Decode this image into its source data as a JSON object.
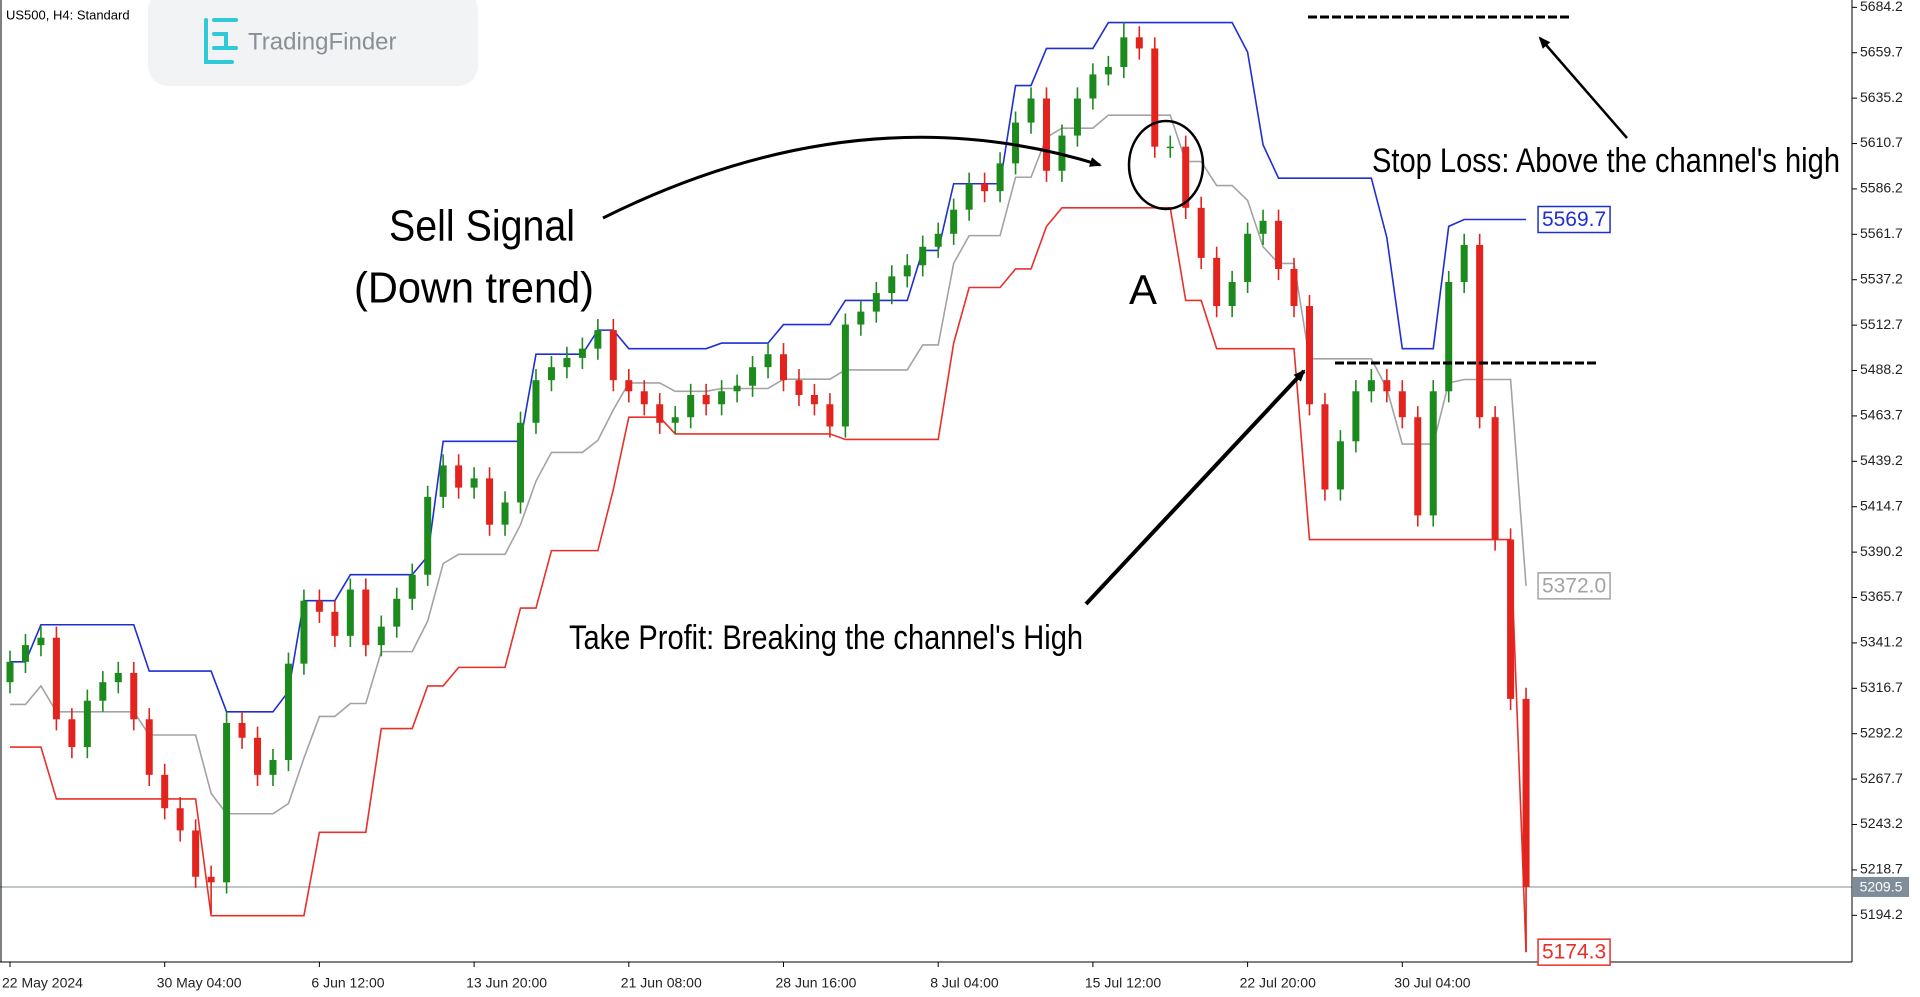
{
  "chart_data": {
    "type": "candlestick",
    "title": "US500, H4: Standard",
    "brand": "TradingFinder",
    "categories": [
      "22 May 2024",
      null,
      null,
      null,
      null,
      null,
      null,
      null,
      null,
      null,
      "30 May 04:00",
      null,
      null,
      null,
      null,
      null,
      null,
      null,
      null,
      null,
      "6 Jun 12:00",
      null,
      null,
      null,
      null,
      null,
      null,
      null,
      null,
      null,
      "13 Jun 20:00",
      null,
      null,
      null,
      null,
      null,
      null,
      null,
      null,
      null,
      "21 Jun 08:00",
      null,
      null,
      null,
      null,
      null,
      null,
      null,
      null,
      null,
      "28 Jun 16:00",
      null,
      null,
      null,
      null,
      null,
      null,
      null,
      null,
      null,
      "8 Jul 04:00",
      null,
      null,
      null,
      null,
      null,
      null,
      null,
      null,
      null,
      "15 Jul 12:00",
      null,
      null,
      null,
      null,
      null,
      null,
      null,
      null,
      null,
      "22 Jul 20:00",
      null,
      null,
      null,
      null,
      null,
      null,
      null,
      null,
      null,
      "30 Jul 04:00",
      null,
      null,
      null,
      null,
      null,
      null,
      null,
      null
    ],
    "open": [
      5320,
      5331,
      5340,
      5344,
      5300,
      5285,
      5310,
      5320,
      5325,
      5300,
      5270,
      5252,
      5240,
      5215,
      5212,
      5298,
      5290,
      5270,
      5278,
      5330,
      5364,
      5358,
      5345,
      5370,
      5340,
      5350,
      5365,
      5378,
      5420,
      5437,
      5425,
      5430,
      5405,
      5417,
      5460,
      5483,
      5490,
      5495,
      5500,
      5510,
      5483,
      5477,
      5470,
      5460,
      5463,
      5475,
      5470,
      5477,
      5480,
      5490,
      5497,
      5483,
      5475,
      5470,
      5458,
      5513,
      5520,
      5530,
      5539,
      5545,
      5555,
      5562,
      5575,
      5589,
      5585,
      5600,
      5622,
      5635,
      5596,
      5615,
      5635,
      5648,
      5652,
      5668,
      5662,
      5609,
      5609,
      5576,
      5549,
      5523,
      5536,
      5562,
      5569,
      5543,
      5523,
      5470,
      5424,
      5450,
      5477,
      5483,
      5477,
      5463,
      5410,
      5477,
      5536,
      5556,
      5463,
      5397,
      5311
    ],
    "high": [
      5337,
      5346,
      5350,
      5350,
      5306,
      5316,
      5326,
      5331,
      5331,
      5306,
      5276,
      5258,
      5246,
      5221,
      5304,
      5304,
      5296,
      5284,
      5336,
      5370,
      5370,
      5364,
      5376,
      5376,
      5356,
      5371,
      5384,
      5426,
      5443,
      5443,
      5436,
      5436,
      5423,
      5466,
      5489,
      5496,
      5501,
      5506,
      5516,
      5516,
      5489,
      5483,
      5476,
      5469,
      5481,
      5481,
      5483,
      5486,
      5496,
      5503,
      5503,
      5489,
      5481,
      5476,
      5519,
      5526,
      5536,
      5545,
      5551,
      5561,
      5568,
      5581,
      5595,
      5595,
      5606,
      5628,
      5641,
      5641,
      5621,
      5641,
      5654,
      5658,
      5676,
      5674,
      5668,
      5615,
      5615,
      5582,
      5555,
      5542,
      5568,
      5575,
      5575,
      5549,
      5529,
      5476,
      5456,
      5483,
      5489,
      5489,
      5483,
      5469,
      5483,
      5542,
      5562,
      5562,
      5469,
      5403,
      5317
    ],
    "low": [
      5314,
      5325,
      5334,
      5294,
      5279,
      5279,
      5304,
      5314,
      5294,
      5264,
      5246,
      5234,
      5209,
      5195,
      5206,
      5284,
      5264,
      5264,
      5272,
      5324,
      5352,
      5339,
      5339,
      5334,
      5334,
      5344,
      5359,
      5372,
      5414,
      5419,
      5419,
      5399,
      5399,
      5411,
      5454,
      5477,
      5484,
      5489,
      5494,
      5477,
      5471,
      5464,
      5454,
      5454,
      5457,
      5464,
      5464,
      5471,
      5474,
      5484,
      5477,
      5469,
      5464,
      5452,
      5452,
      5507,
      5514,
      5524,
      5533,
      5539,
      5549,
      5556,
      5569,
      5579,
      5579,
      5594,
      5616,
      5590,
      5590,
      5609,
      5629,
      5642,
      5646,
      5656,
      5603,
      5603,
      5570,
      5543,
      5517,
      5517,
      5530,
      5556,
      5537,
      5517,
      5464,
      5418,
      5418,
      5444,
      5471,
      5471,
      5457,
      5404,
      5404,
      5471,
      5530,
      5457,
      5391,
      5305,
      5174.3
    ],
    "close": [
      5331,
      5340,
      5344,
      5300,
      5285,
      5310,
      5320,
      5325,
      5300,
      5270,
      5252,
      5240,
      5215,
      5212,
      5298,
      5290,
      5270,
      5278,
      5330,
      5364,
      5358,
      5345,
      5370,
      5340,
      5350,
      5365,
      5378,
      5420,
      5437,
      5425,
      5430,
      5405,
      5417,
      5460,
      5483,
      5490,
      5495,
      5500,
      5510,
      5483,
      5477,
      5470,
      5460,
      5463,
      5475,
      5470,
      5477,
      5480,
      5490,
      5497,
      5483,
      5475,
      5470,
      5458,
      5513,
      5520,
      5530,
      5539,
      5545,
      5555,
      5562,
      5575,
      5589,
      5585,
      5600,
      5622,
      5635,
      5596,
      5615,
      5635,
      5648,
      5652,
      5668,
      5662,
      5609,
      5609,
      5576,
      5549,
      5523,
      5536,
      5562,
      5569,
      5543,
      5523,
      5470,
      5424,
      5450,
      5477,
      5483,
      5477,
      5463,
      5410,
      5477,
      5536,
      5556,
      5463,
      5397,
      5311,
      5209.5
    ],
    "up_color": "#1c8a1c",
    "down_color": "#e3231d",
    "current_price_color": "#7f8c99",
    "channels": [
      {
        "color": "#1f2fd0",
        "values": [
          5331,
          5331,
          5351,
          5351,
          5351,
          5351,
          5351,
          5351,
          5351,
          5326,
          5326,
          5326,
          5326,
          5326,
          5304,
          5304,
          5304,
          5304,
          5315,
          5364,
          5364,
          5364,
          5378,
          5378,
          5378,
          5378,
          5378,
          5388,
          5450,
          5450,
          5450,
          5450,
          5450,
          5450,
          5497,
          5497,
          5497,
          5497,
          5510,
          5510,
          5500,
          5500,
          5500,
          5500,
          5500,
          5500,
          5503,
          5503,
          5503,
          5503,
          5513,
          5513,
          5513,
          5513,
          5526,
          5526,
          5526,
          5526,
          5526,
          5553,
          5553,
          5589,
          5589,
          5589,
          5589,
          5642,
          5642,
          5662,
          5662,
          5662,
          5662,
          5676,
          5676,
          5676,
          5676,
          5676,
          5676,
          5676,
          5676,
          5676,
          5660,
          5610,
          5592,
          5592,
          5592,
          5592,
          5592,
          5592,
          5592,
          5560,
          5500,
          5500,
          5500,
          5566,
          5569.7,
          5569.7,
          5569.7,
          5569.7,
          5569.7
        ],
        "value_labels": [
          null,
          null,
          null,
          null,
          null,
          null,
          null,
          null,
          null,
          null,
          null,
          null,
          null,
          null,
          null,
          null,
          null,
          null,
          null,
          null,
          null,
          null,
          null,
          null,
          null,
          null,
          null,
          null,
          null,
          null,
          null,
          null,
          null,
          null,
          null,
          null,
          null,
          null,
          null,
          null,
          null,
          null,
          null,
          null,
          null,
          null,
          null,
          null,
          null,
          null,
          null,
          null,
          null,
          null,
          null,
          null,
          null,
          null,
          null,
          null,
          null,
          null,
          null,
          null,
          null,
          null,
          null,
          null,
          null,
          null,
          null,
          null,
          null,
          null,
          null,
          null,
          null,
          null,
          null,
          null,
          null,
          null,
          null,
          null,
          null,
          null,
          null,
          null,
          null,
          null,
          null,
          null,
          null,
          null,
          null,
          null,
          null,
          null,
          "5569.7"
        ]
      },
      {
        "color": "#a3a3a3",
        "values": [
          5308,
          5308,
          5318,
          5304,
          5304,
          5304,
          5304,
          5304,
          5304,
          5291.5,
          5291.5,
          5291.5,
          5291.5,
          5260,
          5249,
          5249,
          5249,
          5249,
          5254.5,
          5279,
          5301.5,
          5301.5,
          5308.5,
          5308.5,
          5336.5,
          5336.5,
          5336.5,
          5353,
          5384,
          5389,
          5389,
          5389,
          5389,
          5405,
          5428.5,
          5444,
          5444,
          5444,
          5450.5,
          5467,
          5481.5,
          5481.5,
          5481.5,
          5477,
          5477,
          5477,
          5478.5,
          5478.5,
          5478.5,
          5478.5,
          5483.5,
          5483.5,
          5483.5,
          5483.5,
          5488.5,
          5488.5,
          5488.5,
          5488.5,
          5488.5,
          5502,
          5502,
          5546,
          5561,
          5561,
          5561,
          5592.5,
          5592.5,
          5614,
          5619,
          5619,
          5619,
          5626,
          5626,
          5626,
          5626,
          5626,
          5601,
          5601,
          5588,
          5588,
          5580,
          5555,
          5546,
          5546,
          5494.5,
          5494.5,
          5494.5,
          5494.5,
          5494.5,
          5478.5,
          5448.5,
          5448.5,
          5448.5,
          5481.5,
          5483.35,
          5483.35,
          5483.35,
          5483.35,
          5372
        ],
        "value_labels": [
          null,
          null,
          null,
          null,
          null,
          null,
          null,
          null,
          null,
          null,
          null,
          null,
          null,
          null,
          null,
          null,
          null,
          null,
          null,
          null,
          null,
          null,
          null,
          null,
          null,
          null,
          null,
          null,
          null,
          null,
          null,
          null,
          null,
          null,
          null,
          null,
          null,
          null,
          null,
          null,
          null,
          null,
          null,
          null,
          null,
          null,
          null,
          null,
          null,
          null,
          null,
          null,
          null,
          null,
          null,
          null,
          null,
          null,
          null,
          null,
          null,
          null,
          null,
          null,
          null,
          null,
          null,
          null,
          null,
          null,
          null,
          null,
          null,
          null,
          null,
          null,
          null,
          null,
          null,
          null,
          null,
          null,
          null,
          null,
          null,
          null,
          null,
          null,
          null,
          null,
          null,
          null,
          null,
          null,
          null,
          null,
          null,
          null,
          "5372.0"
        ]
      },
      {
        "color": "#e8302a",
        "values": [
          5285,
          5285,
          5285,
          5257,
          5257,
          5257,
          5257,
          5257,
          5257,
          5257,
          5257,
          5257,
          5257,
          5194,
          5194,
          5194,
          5194,
          5194,
          5194,
          5194,
          5239,
          5239,
          5239,
          5239,
          5295,
          5295,
          5295,
          5318,
          5318,
          5328,
          5328,
          5328,
          5328,
          5360,
          5360,
          5391,
          5391,
          5391,
          5391,
          5424,
          5463,
          5463,
          5463,
          5454,
          5454,
          5454,
          5454,
          5454,
          5454,
          5454,
          5454,
          5454,
          5454,
          5454,
          5451,
          5451,
          5451,
          5451,
          5451,
          5451,
          5451,
          5503,
          5533,
          5533,
          5533,
          5543,
          5543,
          5566,
          5576,
          5576,
          5576,
          5576,
          5576,
          5576,
          5576,
          5576,
          5526,
          5526,
          5500,
          5500,
          5500,
          5500,
          5500,
          5500,
          5397,
          5397,
          5397,
          5397,
          5397,
          5397,
          5397,
          5397,
          5397,
          5397,
          5397,
          5397,
          5397,
          5397,
          5174.3
        ],
        "value_labels": [
          null,
          null,
          null,
          null,
          null,
          null,
          null,
          null,
          null,
          null,
          null,
          null,
          null,
          null,
          null,
          null,
          null,
          null,
          null,
          null,
          null,
          null,
          null,
          null,
          null,
          null,
          null,
          null,
          null,
          null,
          null,
          null,
          null,
          null,
          null,
          null,
          null,
          null,
          null,
          null,
          null,
          null,
          null,
          null,
          null,
          null,
          null,
          null,
          null,
          null,
          null,
          null,
          null,
          null,
          null,
          null,
          null,
          null,
          null,
          null,
          null,
          null,
          null,
          null,
          null,
          null,
          null,
          null,
          null,
          null,
          null,
          null,
          null,
          null,
          null,
          null,
          null,
          null,
          null,
          null,
          null,
          null,
          null,
          null,
          null,
          null,
          null,
          null,
          null,
          null,
          null,
          null,
          null,
          null,
          null,
          null,
          null,
          null,
          "5174.3"
        ]
      }
    ],
    "ylim": [
      5169,
      5686
    ],
    "yticks": [
      5684.2,
      5659.7,
      5635.2,
      5610.7,
      5586.2,
      5561.7,
      5537.2,
      5512.7,
      5488.2,
      5463.7,
      5439.2,
      5414.7,
      5390.2,
      5365.7,
      5341.2,
      5316.7,
      5292.2,
      5267.7,
      5243.2,
      5218.7,
      5194.2
    ],
    "annotations": {
      "sell_signal": "Sell Signal",
      "down_trend": "(Down trend)",
      "point": "A",
      "take_profit": "Take Profit: Breaking the channel's High",
      "stop_loss": "Stop Loss: Above the channel's high"
    }
  }
}
